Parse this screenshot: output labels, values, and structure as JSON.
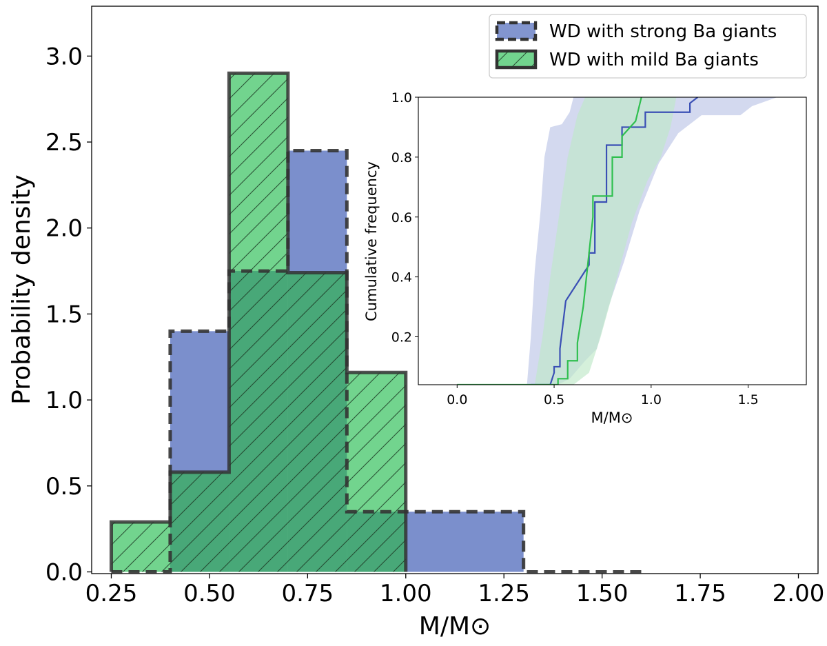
{
  "chart_data": [
    {
      "type": "histogram",
      "xlabel": "M/M⊙",
      "ylabel": "Probability density",
      "xlim": [
        0.2,
        2.05
      ],
      "ylim": [
        -0.01,
        3.29
      ],
      "xticks": [
        0.25,
        0.5,
        0.75,
        1.0,
        1.25,
        1.5,
        1.75,
        2.0
      ],
      "xtick_labels": [
        "0.25",
        "0.50",
        "0.75",
        "1.00",
        "1.25",
        "1.50",
        "1.75",
        "2.00"
      ],
      "yticks": [
        0.0,
        0.5,
        1.0,
        1.5,
        2.0,
        2.5,
        3.0
      ],
      "ytick_labels": [
        "0.0",
        "0.5",
        "1.0",
        "1.5",
        "2.0",
        "2.5",
        "3.0"
      ],
      "legend_position": "top-right",
      "series": [
        {
          "name": "WD with strong Ba giants",
          "color": "#7b8fcc",
          "edge": "dashed",
          "bin_edges": [
            0.25,
            0.4,
            0.55,
            0.7,
            0.85,
            1.0,
            1.3,
            1.6
          ],
          "values": [
            0.0,
            1.4,
            1.75,
            2.45,
            0.35,
            0.35,
            0.0
          ]
        },
        {
          "name": "WD with mild Ba giants",
          "color": "#72d48e",
          "edge": "solid",
          "hatch": "diagonal",
          "bin_edges": [
            0.25,
            0.4,
            0.55,
            0.7,
            0.85,
            1.0
          ],
          "values": [
            0.29,
            0.58,
            2.9,
            1.74,
            1.16
          ]
        }
      ],
      "overlap_color": "#48a878"
    },
    {
      "type": "line",
      "xlabel": "M/M⊙",
      "ylabel": "Cumulative frequency",
      "xlim": [
        -0.2,
        1.8
      ],
      "ylim": [
        0.04,
        1.0
      ],
      "xticks": [
        0.0,
        0.5,
        1.0,
        1.5
      ],
      "xtick_labels": [
        "0.0",
        "0.5",
        "1.0",
        "1.5"
      ],
      "yticks": [
        0.2,
        0.4,
        0.6,
        0.8,
        1.0
      ],
      "ytick_labels": [
        "0.2",
        "0.4",
        "0.6",
        "0.8",
        "1.0"
      ],
      "series": [
        {
          "name": "WD with strong Ba giants",
          "color": "#3a4fb5",
          "band_color": "#b6c0e4",
          "x": [
            0.38,
            0.48,
            0.5,
            0.5,
            0.53,
            0.53,
            0.56,
            0.68,
            0.68,
            0.71,
            0.71,
            0.77,
            0.77,
            0.8,
            0.8,
            0.85,
            0.85,
            0.9,
            0.9,
            0.97,
            0.97,
            1.03,
            1.03,
            1.2,
            1.2,
            1.24
          ],
          "y": [
            0.04,
            0.04,
            0.08,
            0.1,
            0.1,
            0.16,
            0.32,
            0.44,
            0.48,
            0.48,
            0.65,
            0.65,
            0.84,
            0.84,
            0.84,
            0.84,
            0.9,
            0.9,
            0.9,
            0.9,
            0.95,
            0.95,
            0.95,
            0.95,
            0.98,
            1.0
          ],
          "band_upper": [
            [
              0.36,
              0.04
            ],
            [
              0.38,
              0.2
            ],
            [
              0.4,
              0.42
            ],
            [
              0.43,
              0.62
            ],
            [
              0.45,
              0.8
            ],
            [
              0.48,
              0.9
            ],
            [
              0.54,
              0.91
            ],
            [
              0.58,
              0.95
            ],
            [
              0.6,
              1.0
            ],
            [
              1.8,
              1.0
            ]
          ],
          "band_lower": [
            [
              0.36,
              0.04
            ],
            [
              0.52,
              0.04
            ],
            [
              0.58,
              0.06
            ],
            [
              0.66,
              0.12
            ],
            [
              0.72,
              0.16
            ],
            [
              0.78,
              0.3
            ],
            [
              0.86,
              0.45
            ],
            [
              0.94,
              0.62
            ],
            [
              1.04,
              0.78
            ],
            [
              1.14,
              0.88
            ],
            [
              1.26,
              0.94
            ],
            [
              1.46,
              0.94
            ],
            [
              1.52,
              0.97
            ],
            [
              1.65,
              1.0
            ],
            [
              1.8,
              1.0
            ]
          ]
        },
        {
          "name": "WD with mild Ba giants",
          "color": "#2fbf4f",
          "band_color": "#bfe8c8",
          "x": [
            0.0,
            0.45,
            0.52,
            0.52,
            0.57,
            0.57,
            0.62,
            0.62,
            0.65,
            0.68,
            0.7,
            0.7,
            0.74,
            0.74,
            0.8,
            0.8,
            0.85,
            0.85,
            0.92,
            0.95
          ],
          "y": [
            0.04,
            0.04,
            0.04,
            0.06,
            0.06,
            0.12,
            0.12,
            0.18,
            0.3,
            0.48,
            0.6,
            0.67,
            0.67,
            0.67,
            0.67,
            0.8,
            0.8,
            0.87,
            0.92,
            1.0
          ],
          "band_upper": [
            [
              0.4,
              0.04
            ],
            [
              0.44,
              0.2
            ],
            [
              0.48,
              0.4
            ],
            [
              0.52,
              0.58
            ],
            [
              0.57,
              0.8
            ],
            [
              0.62,
              0.94
            ],
            [
              0.66,
              1.0
            ],
            [
              0.95,
              1.0
            ]
          ],
          "band_lower": [
            [
              0.4,
              0.04
            ],
            [
              0.6,
              0.04
            ],
            [
              0.68,
              0.08
            ],
            [
              0.74,
              0.2
            ],
            [
              0.8,
              0.34
            ],
            [
              0.9,
              0.58
            ],
            [
              0.98,
              0.72
            ],
            [
              1.05,
              0.8
            ],
            [
              1.1,
              0.9
            ],
            [
              1.13,
              1.0
            ],
            [
              0.95,
              1.0
            ]
          ]
        }
      ]
    }
  ]
}
